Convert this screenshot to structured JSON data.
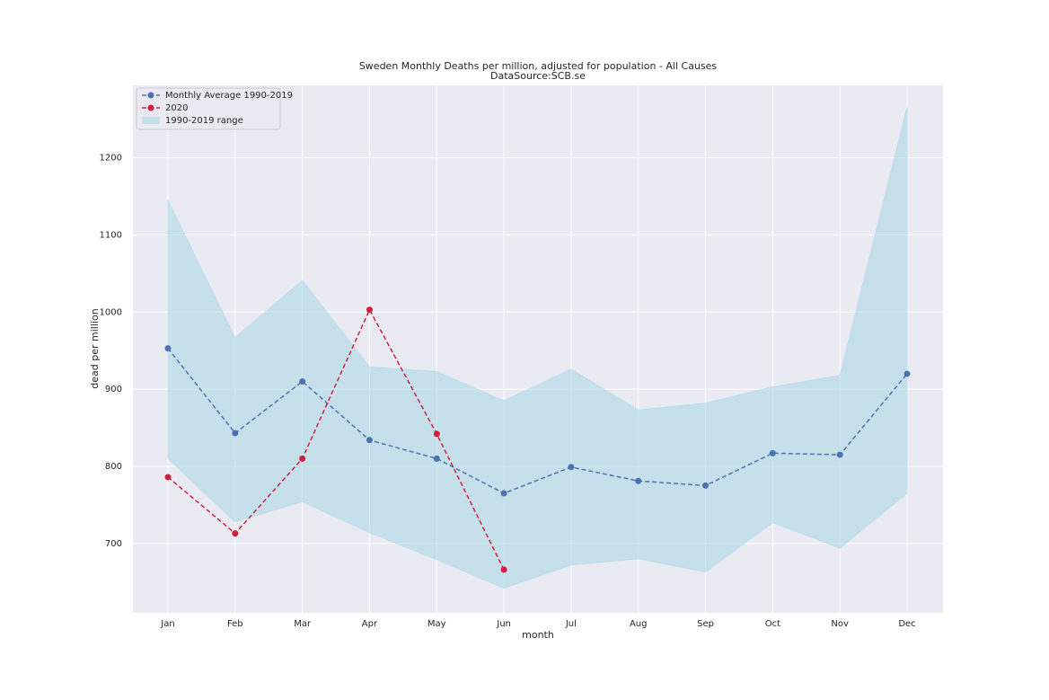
{
  "chart_data": {
    "type": "line",
    "title": "Sweden Monthly Deaths per million, adjusted for population - All Causes",
    "subtitle": "DataSource:SCB.se",
    "x_label": "month",
    "y_label": "dead per million",
    "categories": [
      "Jan",
      "Feb",
      "Mar",
      "Apr",
      "May",
      "Jun",
      "Jul",
      "Aug",
      "Sep",
      "Oct",
      "Nov",
      "Dec"
    ],
    "series": [
      {
        "name": "Monthly Average 1990-2019",
        "color": "#4c72b0",
        "values": [
          953,
          843,
          910,
          834,
          810,
          765,
          799,
          781,
          775,
          817,
          815,
          920
        ]
      },
      {
        "name": "2020",
        "color": "#d0203e",
        "values": [
          786,
          713,
          810,
          1003,
          842,
          666,
          null,
          null,
          null,
          null,
          null,
          null
        ]
      }
    ],
    "range": {
      "name": "1990-2019 range",
      "color": "#add8e6",
      "upper": [
        1145,
        967,
        1041,
        929,
        923,
        885,
        926,
        873,
        882,
        903,
        918,
        1266
      ],
      "lower": [
        810,
        728,
        754,
        714,
        679,
        642,
        672,
        680,
        663,
        727,
        694,
        765
      ]
    },
    "ylim": [
      610,
      1294
    ],
    "yticks": [
      700,
      800,
      900,
      1000,
      1100,
      1200
    ],
    "grid": true,
    "legend": "upper left"
  }
}
